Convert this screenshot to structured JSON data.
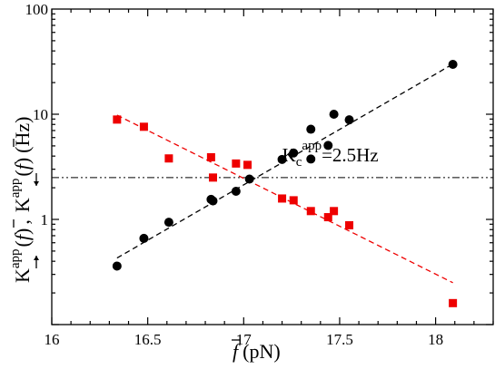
{
  "chart_data": {
    "type": "scatter",
    "title": "",
    "xlabel": "(pN)",
    "xlabel_symbol": "f",
    "ylabel": {
      "k1": "K",
      "sup1": "app",
      "paren1": "(",
      "sym1": "f",
      "paren1b": ")",
      "sep": ",",
      "k2": "K",
      "sup2": "app",
      "paren2": "(",
      "sym2": "f",
      "paren2b": ")",
      "unit": "(Hz)"
    },
    "xlim": [
      16,
      18.3
    ],
    "ylim": [
      0.1,
      100
    ],
    "yscale": "log",
    "grid": false,
    "x_ticks": [
      16,
      16.5,
      17,
      17.5,
      18
    ],
    "x_tick_labels": [
      "16",
      "16.5",
      "17",
      "17.5",
      "18"
    ],
    "y_ticks": [
      1,
      10,
      100
    ],
    "y_tick_labels": [
      "1",
      "10",
      "100"
    ],
    "annotation": {
      "base": "K",
      "sub": "c",
      "sup": "app",
      "value": "=2.5Hz",
      "x": 17.2,
      "y": 2.6
    },
    "reference_line": {
      "y": 2.5,
      "style": "dash-dot-dot",
      "color": "#000000"
    },
    "series": [
      {
        "marker": "circle",
        "color": "#000000",
        "points": [
          {
            "x": 16.34,
            "y": 0.36
          },
          {
            "x": 16.48,
            "y": 0.66
          },
          {
            "x": 16.61,
            "y": 0.94
          },
          {
            "x": 16.83,
            "y": 1.55
          },
          {
            "x": 16.84,
            "y": 1.5
          },
          {
            "x": 16.96,
            "y": 1.85
          },
          {
            "x": 17.03,
            "y": 2.42
          },
          {
            "x": 17.2,
            "y": 3.72
          },
          {
            "x": 17.26,
            "y": 4.28
          },
          {
            "x": 17.35,
            "y": 3.75
          },
          {
            "x": 17.35,
            "y": 7.2
          },
          {
            "x": 17.44,
            "y": 5.05
          },
          {
            "x": 17.47,
            "y": 10.0
          },
          {
            "x": 17.55,
            "y": 8.85
          },
          {
            "x": 18.09,
            "y": 29.8
          }
        ],
        "fit": {
          "color": "#000000",
          "x0": 16.34,
          "y0": 0.43,
          "x1": 18.09,
          "y1": 30.0
        }
      },
      {
        "marker": "square",
        "color": "#ee0000",
        "points": [
          {
            "x": 16.34,
            "y": 8.9
          },
          {
            "x": 16.48,
            "y": 7.6
          },
          {
            "x": 16.61,
            "y": 3.8
          },
          {
            "x": 16.83,
            "y": 3.9
          },
          {
            "x": 16.84,
            "y": 2.5
          },
          {
            "x": 16.96,
            "y": 3.4
          },
          {
            "x": 17.02,
            "y": 3.3
          },
          {
            "x": 17.2,
            "y": 1.58
          },
          {
            "x": 17.26,
            "y": 1.52
          },
          {
            "x": 17.35,
            "y": 1.2
          },
          {
            "x": 17.44,
            "y": 1.05
          },
          {
            "x": 17.47,
            "y": 1.2
          },
          {
            "x": 17.55,
            "y": 0.88
          },
          {
            "x": 18.09,
            "y": 0.16
          }
        ],
        "fit": {
          "color": "#ee0000",
          "x0": 16.34,
          "y0": 9.8,
          "x1": 18.09,
          "y1": 0.25
        }
      }
    ]
  }
}
